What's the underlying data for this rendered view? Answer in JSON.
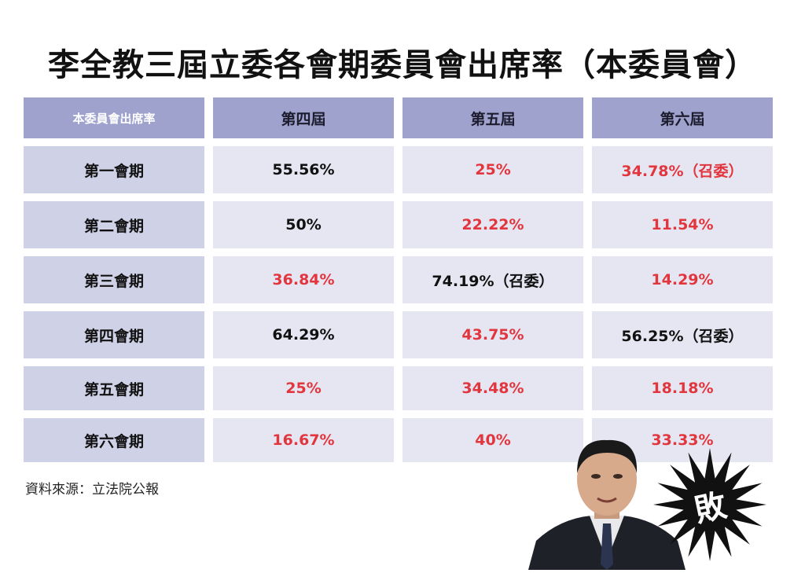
{
  "title": "李全教三屆立委各會期委員會出席率（本委員會）",
  "source": "資料來源：立法院公報",
  "badge_text": "敗",
  "colors": {
    "header_bg": "#9ea2cd",
    "rowheader_bg": "#cfd1e7",
    "cell_bg": "#e5e6f2",
    "red": "#e2363f",
    "black": "#111111"
  },
  "chart_data": {
    "type": "table",
    "title": "李全教三屆立委各會期委員會出席率（本委員會）",
    "corner_label": "本委員會出席率",
    "columns": [
      "第四屆",
      "第五屆",
      "第六屆"
    ],
    "rows": [
      {
        "label": "第一會期",
        "cells": [
          {
            "text": "55.56%",
            "red": false
          },
          {
            "text": "25%",
            "red": true
          },
          {
            "text": "34.78%（召委）",
            "red": true
          }
        ]
      },
      {
        "label": "第二會期",
        "cells": [
          {
            "text": "50%",
            "red": false
          },
          {
            "text": "22.22%",
            "red": true
          },
          {
            "text": "11.54%",
            "red": true
          }
        ]
      },
      {
        "label": "第三會期",
        "cells": [
          {
            "text": "36.84%",
            "red": true
          },
          {
            "text": "74.19%（召委）",
            "red": false
          },
          {
            "text": "14.29%",
            "red": true
          }
        ]
      },
      {
        "label": "第四會期",
        "cells": [
          {
            "text": "64.29%",
            "red": false
          },
          {
            "text": "43.75%",
            "red": true
          },
          {
            "text": "56.25%（召委）",
            "red": false
          }
        ]
      },
      {
        "label": "第五會期",
        "cells": [
          {
            "text": "25%",
            "red": true
          },
          {
            "text": "34.48%",
            "red": true
          },
          {
            "text": "18.18%",
            "red": true
          }
        ]
      },
      {
        "label": "第六會期",
        "cells": [
          {
            "text": "16.67%",
            "red": true
          },
          {
            "text": "40%",
            "red": true
          },
          {
            "text": "33.33%",
            "red": true
          }
        ]
      }
    ],
    "values": [
      [
        55.56,
        25,
        34.78
      ],
      [
        50,
        22.22,
        11.54
      ],
      [
        36.84,
        74.19,
        14.29
      ],
      [
        64.29,
        43.75,
        56.25
      ],
      [
        25,
        34.48,
        18.18
      ],
      [
        16.67,
        40,
        33.33
      ]
    ]
  }
}
